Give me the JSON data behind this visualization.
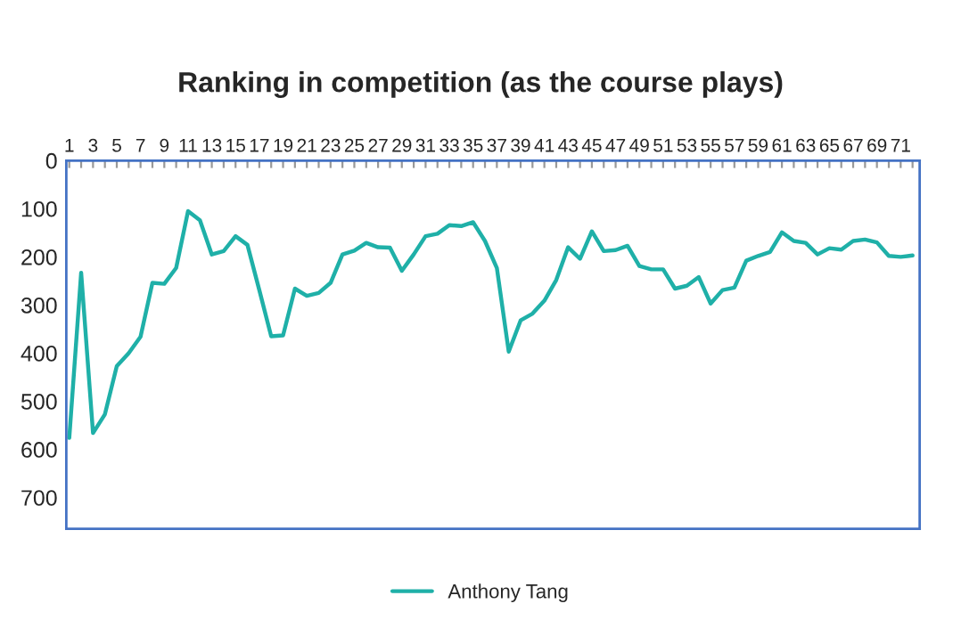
{
  "chart_data": {
    "type": "line",
    "title": "Ranking in competition (as the course plays)",
    "categories": [
      "1",
      null,
      "3",
      null,
      "5",
      null,
      "7",
      null,
      "9",
      null,
      "11",
      null,
      "13",
      null,
      "15",
      null,
      "17",
      null,
      "19",
      null,
      "21",
      null,
      "23",
      null,
      "25",
      null,
      "27",
      null,
      "29",
      null,
      "31",
      null,
      "33",
      null,
      "35",
      null,
      "37",
      null,
      "39",
      null,
      "41",
      null,
      "43",
      null,
      "45",
      null,
      "47",
      null,
      "49",
      null,
      "51",
      null,
      "53",
      null,
      "55",
      null,
      "57",
      null,
      "59",
      null,
      "61",
      null,
      "63",
      null,
      "65",
      null,
      "67",
      null,
      "69",
      null,
      "71",
      null
    ],
    "series": [
      {
        "name": "Anthony Tang",
        "color": "#1fb0a8",
        "values": [
          576,
          233,
          566,
          527,
          427,
          400,
          366,
          254,
          256,
          223,
          105,
          124,
          195,
          188,
          157,
          175,
          269,
          365,
          363,
          266,
          281,
          275,
          254,
          195,
          187,
          171,
          180,
          181,
          229,
          195,
          157,
          152,
          134,
          136,
          128,
          167,
          223,
          397,
          332,
          318,
          291,
          248,
          180,
          204,
          147,
          188,
          186,
          177,
          219,
          226,
          226,
          266,
          260,
          242,
          297,
          269,
          264,
          208,
          198,
          190,
          149,
          167,
          171,
          195,
          182,
          185,
          167,
          164,
          170,
          198,
          200,
          197
        ]
      }
    ],
    "ylim": [
      765,
      0
    ],
    "yticks": [
      0,
      100,
      200,
      300,
      400,
      500,
      600,
      700
    ],
    "legend": "bottom",
    "marker": "none",
    "line_style": "solid"
  }
}
